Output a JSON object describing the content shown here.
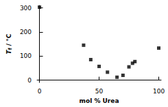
{
  "chart_data": {
    "type": "scatter",
    "x_label": "mol % Urea",
    "y_label": "Tf / °C",
    "x": [
      0,
      37,
      43,
      50,
      57,
      65,
      70,
      75,
      78,
      80,
      100
    ],
    "values": [
      303,
      145,
      85,
      57,
      33,
      12,
      20,
      55,
      70,
      77,
      133
    ],
    "color": "#000000",
    "marker": "square",
    "xlim": [
      -2,
      102
    ],
    "xticks": [
      0,
      50,
      100
    ],
    "ylim": [
      -10,
      310
    ],
    "yticks": [
      0,
      100,
      200,
      300
    ],
    "grid": false
  }
}
